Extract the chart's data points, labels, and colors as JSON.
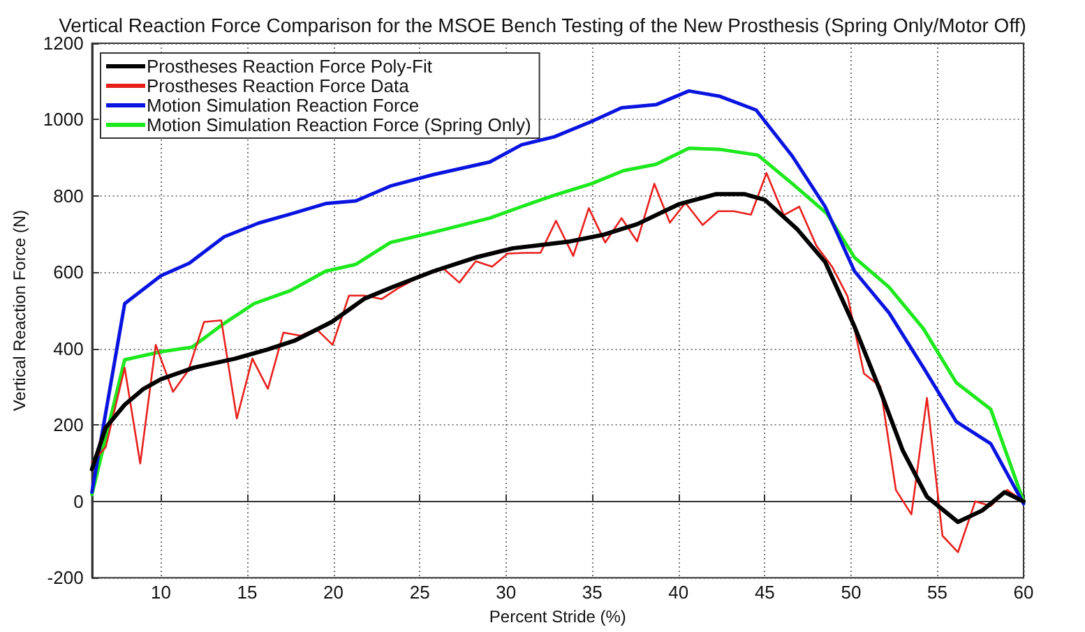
{
  "chart_data": {
    "type": "line",
    "title": "Vertical Reaction Force Comparison for the MSOE Bench Testing of the New Prosthesis (Spring Only/Motor Off)",
    "xlabel": "Percent Stride (%)",
    "ylabel": "Vertical Reaction Force (N)",
    "xlim": [
      6,
      60
    ],
    "xticks": [
      10,
      15,
      20,
      25,
      30,
      35,
      40,
      45,
      50,
      55,
      60
    ],
    "ylim": [
      -200,
      1200
    ],
    "yticks": [
      -200,
      0,
      200,
      400,
      600,
      800,
      1000,
      1200
    ],
    "grid": true,
    "legend": "top left",
    "marker": "none",
    "line_style": "solid",
    "series": [
      {
        "name": "Prostheses Reaction Force Poly-Fit",
        "color": "#000000",
        "x": [
          6,
          6.8,
          7.9,
          9,
          10,
          11.9,
          14.3,
          16.2,
          17.8,
          19.9,
          21.8,
          23.4,
          25.8,
          28.25,
          30.4,
          33.6,
          35.7,
          37.6,
          40,
          42.2,
          43.8,
          45,
          46.9,
          48.5,
          50.2,
          51.7,
          53,
          54.4,
          56.2,
          57.6,
          58.9,
          60
        ],
        "values": [
          84,
          193,
          253,
          295,
          320,
          350,
          374,
          398,
          422,
          470,
          531,
          561,
          603,
          639,
          663,
          680,
          699,
          726,
          778,
          805,
          805,
          790,
          712,
          627,
          458,
          289,
          133,
          12,
          -54,
          -24,
          24,
          0
        ]
      },
      {
        "name": "Prostheses Reaction Force Data",
        "color": "#e8201c",
        "x": [
          6,
          6.8,
          7.9,
          8.8,
          9.7,
          10.7,
          11.6,
          12.5,
          13.5,
          14.4,
          15.3,
          16.2,
          17.1,
          18.1,
          19,
          19.95,
          20.9,
          21.8,
          22.8,
          23.7,
          24.6,
          25.6,
          26.4,
          27.3,
          28.25,
          29.2,
          30.1,
          31.1,
          32,
          32.9,
          33.9,
          34.8,
          35.75,
          36.7,
          37.6,
          38.6,
          39.5,
          40.4,
          41.4,
          42.3,
          43.2,
          44.2,
          45.1,
          46.1,
          47,
          48,
          48.9,
          49.8,
          50.75,
          51.7,
          52.6,
          53.5,
          54.4,
          55.3,
          56.2,
          57.2,
          58.1,
          59.05,
          60
        ],
        "values": [
          102,
          142,
          350,
          99,
          410,
          287,
          344,
          470,
          474,
          217,
          374,
          295,
          442,
          434,
          452,
          410,
          539,
          539,
          530,
          557,
          579,
          597,
          609,
          573,
          629,
          615,
          649,
          651,
          651,
          735,
          643,
          768,
          678,
          742,
          681,
          832,
          730,
          782,
          724,
          760,
          760,
          751,
          860,
          750,
          772,
          669,
          615,
          537,
          335,
          301,
          30,
          -34,
          271,
          -90,
          -133,
          0,
          -12,
          30,
          0
        ]
      },
      {
        "name": "Motion Simulation Reaction Force",
        "color": "#0a14e0",
        "x": [
          6,
          7.9,
          10,
          11.65,
          13.66,
          15.67,
          17.54,
          19.55,
          21.3,
          23.3,
          25.8,
          29.06,
          30.9,
          32.8,
          34.95,
          36.7,
          38.7,
          40.6,
          42.4,
          44.5,
          46.6,
          48.5,
          50.2,
          52.2,
          54.2,
          56.1,
          58.1,
          60
        ],
        "values": [
          24,
          518,
          591,
          624,
          693,
          729,
          753,
          780,
          787,
          826,
          856,
          889,
          934,
          955,
          995,
          1031,
          1039,
          1075,
          1061,
          1025,
          904,
          772,
          603,
          494,
          350,
          209,
          151,
          -6
        ]
      },
      {
        "name": "Motion Simulation Reaction Force (Spring Only)",
        "color": "#1ee81e",
        "x": [
          6,
          7.9,
          10,
          11.8,
          13.5,
          15.4,
          17.5,
          19.55,
          21.3,
          23.3,
          25.8,
          29.06,
          30.9,
          32.8,
          34.95,
          36.8,
          38.7,
          40.6,
          42.4,
          44.6,
          46.6,
          48.6,
          50.2,
          52.2,
          54.2,
          56.1,
          58.1,
          60
        ],
        "values": [
          18,
          371,
          392,
          404,
          461,
          518,
          552,
          603,
          621,
          678,
          705,
          742,
          772,
          802,
          832,
          866,
          883,
          925,
          922,
          907,
          832,
          754,
          639,
          561,
          452,
          311,
          241,
          0
        ]
      }
    ]
  }
}
